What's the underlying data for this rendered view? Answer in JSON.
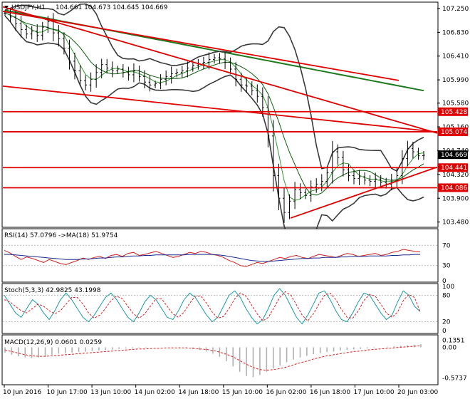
{
  "header": {
    "symbol": "USDJPY,H1",
    "ohlc": "104.661 104.673 104.645 104.669"
  },
  "indicators": {
    "rsi_label": "RSI(14) 57.0796  ->MA(18) 51.9754",
    "stoch_label": "Stoch(5,3,3) 42.9825 43.1998",
    "macd_label": "MACD(12,26,9) 0.0601 0.0259"
  },
  "colors": {
    "price_bars": "#000000",
    "bollinger": "#3a3a3a",
    "ma_dark_green": "#0b5e0b",
    "ma_green": "#2f9a2f",
    "trendline_red": "#e00000",
    "ma_long_green": "#1e7a1e",
    "rsi_line": "#d02020",
    "rsi_ma": "#1a2a8a",
    "stoch_main": "#1b9aa8",
    "stoch_signal": "#e02020",
    "macd_hist": "#b0b0b0",
    "macd_signal": "#e02020",
    "price_label_bg": "#e00000",
    "current_label_bg": "#000000"
  },
  "chart_data": [
    {
      "type": "line",
      "panel": "price",
      "ylim": [
        103.4,
        107.35
      ],
      "y_ticks": [
        "107.250",
        "106.830",
        "106.410",
        "105.990",
        "105.580",
        "105.160",
        "104.740",
        "104.320",
        "103.900",
        "103.480"
      ],
      "x_tick_labels": [
        "10 Jun 2016",
        "10 Jun 17:00",
        "13 Jun 10:00",
        "14 Jun 02:00",
        "14 Jun 18:00",
        "15 Jun 10:00",
        "16 Jun 02:00",
        "16 Jun 18:00",
        "17 Jun 10:00",
        "20 Jun 03:00"
      ],
      "close": [
        107.17,
        107.1,
        106.98,
        106.88,
        106.8,
        106.85,
        106.78,
        106.92,
        107.02,
        106.82,
        106.72,
        106.55,
        106.32,
        106.15,
        105.98,
        105.9,
        106.0,
        106.12,
        106.26,
        106.2,
        106.15,
        106.18,
        106.12,
        106.08,
        106.15,
        106.05,
        105.95,
        105.9,
        105.92,
        106.0,
        106.05,
        106.1,
        106.12,
        106.15,
        106.2,
        106.25,
        106.28,
        106.3,
        106.35,
        106.38,
        106.36,
        106.3,
        106.18,
        106.0,
        105.9,
        105.88,
        105.8,
        105.7,
        105.5,
        105.0,
        104.3,
        103.9,
        103.65,
        103.85,
        104.05,
        104.0,
        103.95,
        104.1,
        104.15,
        104.2,
        104.35,
        104.72,
        104.62,
        104.4,
        104.3,
        104.25,
        104.28,
        104.22,
        104.2,
        104.24,
        104.18,
        104.15,
        104.22,
        104.3,
        104.6,
        104.78,
        104.72,
        104.65,
        104.66
      ],
      "price_labels": [
        "105.428",
        "105.074",
        "104.669",
        "104.441",
        "104.086"
      ],
      "current_price": "104.669",
      "horizontal_levels": [
        105.428,
        105.074,
        104.441,
        104.086
      ]
    },
    {
      "type": "line",
      "panel": "rsi",
      "title": "RSI(14) 57.0796  ->MA(18) 51.9754",
      "levels": [
        "70",
        "30",
        "0"
      ],
      "ylim": [
        0,
        100
      ],
      "series": [
        {
          "name": "RSI",
          "values": [
            60,
            55,
            48,
            42,
            47,
            44,
            40,
            36,
            42,
            38,
            34,
            32,
            36,
            40,
            45,
            42,
            46,
            48,
            44,
            50,
            52,
            48,
            54,
            56,
            50,
            52,
            55,
            58,
            54,
            50,
            46,
            48,
            52,
            56,
            54,
            58,
            56,
            52,
            50,
            46,
            40,
            36,
            30,
            28,
            32,
            36,
            34,
            38,
            42,
            46,
            44,
            48,
            50,
            46,
            44,
            48,
            52,
            50,
            48,
            46,
            50,
            54,
            52,
            48,
            50,
            52,
            54,
            50,
            52,
            56,
            58,
            62,
            60,
            58,
            57
          ]
        },
        {
          "name": "MA",
          "values": [
            52,
            52,
            51,
            50,
            49,
            48,
            47,
            46,
            45,
            44,
            43,
            42,
            42,
            42,
            43,
            43,
            44,
            45,
            45,
            46,
            47,
            47,
            48,
            49,
            49,
            50,
            50,
            51,
            51,
            51,
            51,
            51,
            51,
            52,
            52,
            52,
            52,
            52,
            51,
            50,
            48,
            46,
            44,
            42,
            40,
            39,
            38,
            38,
            39,
            40,
            41,
            42,
            43,
            44,
            44,
            45,
            45,
            46,
            46,
            46,
            47,
            47,
            48,
            48,
            48,
            49,
            49,
            49,
            49,
            50,
            50,
            51,
            51,
            52,
            52
          ]
        }
      ]
    },
    {
      "type": "line",
      "panel": "stochastic",
      "title": "Stoch(5,3,3) 42.9825 43.1998",
      "levels": [
        "100",
        "80",
        "20",
        "0"
      ],
      "ylim": [
        0,
        100
      ],
      "series": [
        {
          "name": "Stoch",
          "values": [
            80,
            60,
            40,
            30,
            50,
            70,
            60,
            40,
            25,
            45,
            70,
            85,
            70,
            50,
            30,
            20,
            35,
            55,
            75,
            85,
            70,
            50,
            30,
            20,
            40,
            65,
            80,
            70,
            50,
            30,
            25,
            45,
            70,
            85,
            75,
            55,
            35,
            20,
            30,
            55,
            80,
            90,
            75,
            50,
            30,
            15,
            25,
            50,
            80,
            95,
            80,
            55,
            30,
            15,
            35,
            60,
            85,
            90,
            70,
            45,
            25,
            20,
            40,
            65,
            85,
            80,
            60,
            40,
            25,
            35,
            65,
            90,
            80,
            55,
            43
          ]
        },
        {
          "name": "Signal",
          "values": [
            70,
            65,
            55,
            45,
            40,
            50,
            60,
            55,
            45,
            38,
            45,
            60,
            75,
            75,
            60,
            40,
            28,
            35,
            50,
            68,
            78,
            72,
            55,
            38,
            28,
            38,
            55,
            72,
            72,
            55,
            38,
            30,
            42,
            62,
            78,
            78,
            62,
            42,
            28,
            32,
            50,
            72,
            85,
            78,
            58,
            38,
            22,
            30,
            52,
            75,
            88,
            80,
            58,
            35,
            22,
            38,
            60,
            80,
            85,
            70,
            48,
            30,
            28,
            45,
            68,
            82,
            78,
            60,
            40,
            30,
            42,
            68,
            82,
            75,
            43
          ]
        }
      ]
    },
    {
      "type": "bar",
      "panel": "macd",
      "title": "MACD(12,26,9) 0.0601 0.0259",
      "y_ticks": [
        "0.1351",
        "0.00",
        "-0.5737"
      ],
      "ylim": [
        -0.65,
        0.18
      ],
      "series": [
        {
          "name": "MACD",
          "values": [
            -0.1,
            -0.14,
            -0.17,
            -0.19,
            -0.2,
            -0.19,
            -0.17,
            -0.14,
            -0.12,
            -0.11,
            -0.1,
            -0.09,
            -0.08,
            -0.07,
            -0.06,
            -0.05,
            -0.04,
            -0.03,
            -0.02,
            -0.02,
            -0.01,
            -0.01,
            0.0,
            0.0,
            0.0,
            0.0,
            -0.01,
            -0.02,
            -0.03,
            -0.05,
            -0.08,
            -0.12,
            -0.18,
            -0.26,
            -0.36,
            -0.46,
            -0.54,
            -0.56,
            -0.52,
            -0.46,
            -0.4,
            -0.34,
            -0.28,
            -0.23,
            -0.19,
            -0.16,
            -0.13,
            -0.11,
            -0.09,
            -0.08,
            -0.06,
            -0.05,
            -0.04,
            -0.03,
            -0.02,
            -0.01,
            0.0,
            0.01,
            0.02,
            0.03,
            0.04,
            0.05,
            0.06
          ]
        },
        {
          "name": "Signal",
          "values": [
            -0.05,
            -0.08,
            -0.11,
            -0.14,
            -0.16,
            -0.17,
            -0.17,
            -0.16,
            -0.15,
            -0.14,
            -0.13,
            -0.12,
            -0.11,
            -0.1,
            -0.09,
            -0.08,
            -0.07,
            -0.06,
            -0.05,
            -0.04,
            -0.03,
            -0.03,
            -0.02,
            -0.02,
            -0.01,
            -0.01,
            -0.01,
            -0.01,
            -0.02,
            -0.03,
            -0.04,
            -0.06,
            -0.09,
            -0.13,
            -0.18,
            -0.25,
            -0.32,
            -0.38,
            -0.42,
            -0.43,
            -0.42,
            -0.4,
            -0.37,
            -0.33,
            -0.29,
            -0.26,
            -0.22,
            -0.19,
            -0.16,
            -0.14,
            -0.12,
            -0.1,
            -0.08,
            -0.07,
            -0.05,
            -0.04,
            -0.03,
            -0.02,
            -0.01,
            0.0,
            0.01,
            0.02,
            0.03
          ]
        }
      ]
    }
  ]
}
